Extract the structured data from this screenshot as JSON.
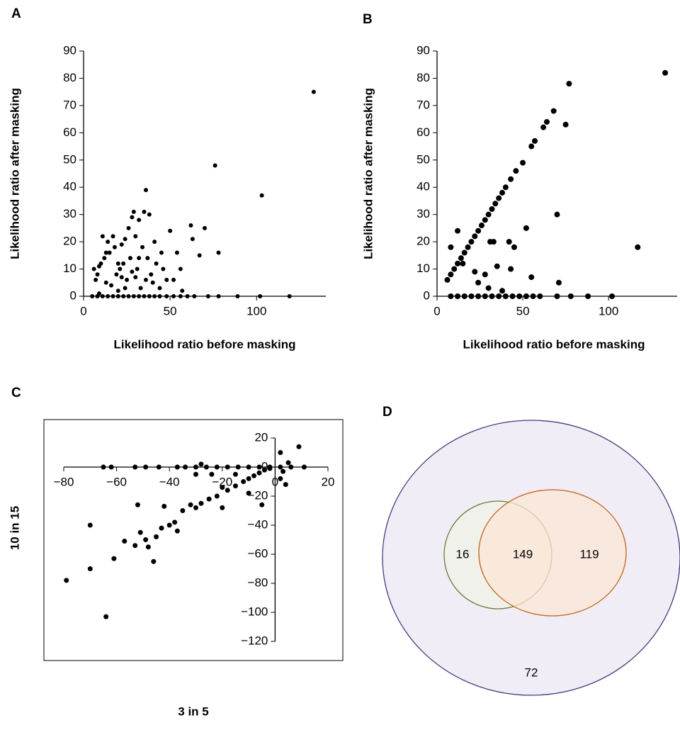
{
  "chart_data": [
    {
      "type": "scatter",
      "panel_label": "A",
      "xlabel": "Likelihood ratio before masking",
      "ylabel": "Likelihood ratio after masking",
      "xlim": [
        0,
        140
      ],
      "xticks": [
        0,
        50,
        100
      ],
      "ylim": [
        0,
        90
      ],
      "yticks": [
        0,
        10,
        20,
        30,
        40,
        50,
        60,
        70,
        80,
        90
      ],
      "axes_at_origin": false,
      "frame": false,
      "marker_size": 3,
      "color": "#000000",
      "x": [
        5,
        8,
        11,
        14,
        17,
        20,
        23,
        26,
        29,
        32,
        35,
        38,
        41,
        44,
        48,
        52,
        56,
        60,
        64,
        72,
        78,
        89,
        102,
        119,
        6,
        7,
        8,
        9,
        10,
        11,
        12,
        13,
        14,
        15,
        16,
        17,
        18,
        19,
        20,
        21,
        22,
        23,
        24,
        25,
        26,
        27,
        28,
        29,
        30,
        31,
        32,
        33,
        34,
        35,
        36,
        37,
        38,
        39,
        40,
        41,
        42,
        44,
        46,
        48,
        50,
        52,
        54,
        56,
        57,
        62,
        63,
        67,
        70,
        76,
        78,
        103,
        133,
        20,
        24,
        28,
        32,
        36,
        45,
        9,
        13,
        30,
        22
      ],
      "y": [
        0,
        0,
        0,
        0,
        0,
        0,
        0,
        0,
        0,
        0,
        0,
        0,
        0,
        0,
        0,
        0,
        0,
        0,
        0,
        0,
        0,
        0,
        0,
        0,
        10,
        6,
        8,
        11,
        12,
        22,
        14,
        16,
        20,
        16,
        4,
        22,
        18,
        8,
        2,
        10,
        19,
        12,
        21,
        6,
        25,
        14,
        29,
        31,
        7,
        10,
        28,
        3,
        18,
        31,
        39,
        14,
        30,
        8,
        5,
        20,
        12,
        3,
        10,
        6,
        24,
        6,
        16,
        10,
        2,
        26,
        21,
        15,
        25,
        48,
        16,
        37,
        75,
        12,
        3,
        9,
        14,
        6,
        16,
        1,
        5,
        22,
        7
      ]
    },
    {
      "type": "scatter",
      "panel_label": "B",
      "xlabel": "Likelihood ratio before masking",
      "ylabel": "Likelihood ratio after masking",
      "xlim": [
        0,
        140
      ],
      "xticks": [
        0,
        50,
        100
      ],
      "ylim": [
        0,
        90
      ],
      "yticks": [
        0,
        10,
        20,
        30,
        40,
        50,
        60,
        70,
        80,
        90
      ],
      "axes_at_origin": false,
      "frame": false,
      "marker_size": 4,
      "color": "#000000",
      "x": [
        6,
        8,
        10,
        12,
        14,
        16,
        18,
        20,
        22,
        24,
        26,
        28,
        30,
        32,
        34,
        36,
        38,
        40,
        43,
        46,
        50,
        55,
        57,
        62,
        64,
        68,
        77,
        75,
        133,
        117,
        70,
        71,
        55,
        52,
        45,
        42,
        43,
        35,
        33,
        31,
        22,
        24,
        28,
        30,
        12,
        8,
        15,
        38,
        8,
        12,
        16,
        20,
        24,
        28,
        32,
        36,
        40,
        44,
        48,
        52,
        56,
        60,
        70,
        78,
        88,
        102
      ],
      "y": [
        6,
        8,
        10,
        12,
        14,
        16,
        18,
        20,
        22,
        24,
        26,
        28,
        30,
        32,
        34,
        36,
        38,
        40,
        43,
        46,
        49,
        55,
        57,
        62,
        64,
        68,
        78,
        63,
        82,
        18,
        30,
        5,
        7,
        25,
        18,
        20,
        10,
        11,
        20,
        20,
        9,
        5,
        8,
        3,
        24,
        18,
        12,
        2,
        0,
        0,
        0,
        0,
        0,
        0,
        0,
        0,
        0,
        0,
        0,
        0,
        0,
        0,
        0,
        0,
        0,
        0
      ]
    },
    {
      "type": "scatter",
      "panel_label": "C",
      "xlabel": "3 in 5",
      "ylabel": "10 in 15",
      "xlim": [
        -80,
        20
      ],
      "xticks": [
        {
          "value": -80,
          "label": "−80"
        },
        {
          "value": -60,
          "label": "−60"
        },
        {
          "value": -40,
          "label": "−40"
        },
        {
          "value": -20,
          "label": "−20"
        },
        0,
        20
      ],
      "ylim": [
        -120,
        20
      ],
      "yticks": [
        {
          "value": -120,
          "label": "−120"
        },
        {
          "value": -100,
          "label": "−100"
        },
        {
          "value": -80,
          "label": "−80"
        },
        {
          "value": -60,
          "label": "−60"
        },
        {
          "value": -40,
          "label": "−40"
        },
        {
          "value": -20,
          "label": "−20"
        },
        0,
        20
      ],
      "axes_at_origin": true,
      "frame": true,
      "marker_size": 3.5,
      "color": "#000000",
      "x": [
        -79,
        -70,
        -70,
        -64,
        -61,
        -57,
        -53,
        -51,
        -52,
        -49,
        -48,
        -46,
        -45,
        -43,
        -42,
        -40,
        -38,
        -37,
        -35,
        -32,
        -30,
        -28,
        -25,
        -22,
        -20,
        -18,
        -15,
        -12,
        -10,
        -8,
        -6,
        -4,
        -2,
        -5,
        -10,
        -15,
        -24,
        -30,
        -20,
        2,
        4,
        2,
        9,
        5,
        3,
        -65,
        -62,
        -53,
        -49,
        -44,
        -37,
        -34,
        -30,
        -26,
        -22,
        -18,
        -14,
        -10,
        -6,
        -2,
        2,
        6,
        11,
        -28
      ],
      "y": [
        -78,
        -40,
        -70,
        -103,
        -63,
        -51,
        -54,
        -45,
        -26,
        -50,
        -55,
        -65,
        -48,
        -42,
        -27,
        -40,
        -38,
        -44,
        -30,
        -26,
        -28,
        -25,
        -22,
        -20,
        -14,
        -16,
        -13,
        -10,
        -8,
        -6,
        -4,
        -2,
        -1,
        -26,
        -18,
        -5,
        -5,
        -5,
        -28,
        -8,
        -12,
        10,
        14,
        3,
        -3,
        0,
        0,
        0,
        0,
        0,
        0,
        0,
        0,
        0,
        0,
        0,
        0,
        0,
        0,
        0,
        0,
        0,
        0,
        2
      ]
    },
    {
      "type": "venn",
      "panel_label": "D",
      "values": [
        16,
        149,
        119,
        72
      ],
      "circle_colors": {
        "outer": "#4b3a7a",
        "left": "#6a7b3a",
        "right": "#c0661a"
      }
    }
  ]
}
